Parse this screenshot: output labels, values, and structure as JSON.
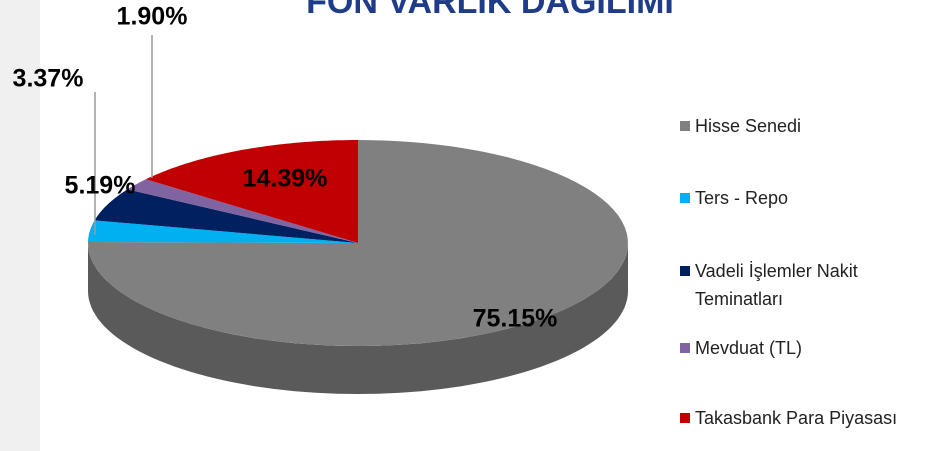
{
  "chart_data": {
    "type": "pie",
    "title": "FON VARLIK DAĞILIMI",
    "categories": [
      "Hisse Senedi",
      "Ters - Repo",
      "Vadeli İşlemler Nakit Teminatları",
      "Mevduat (TL)",
      "Takasbank Para Piyasası"
    ],
    "values": [
      75.15,
      3.37,
      5.19,
      1.9,
      14.39
    ],
    "value_labels": [
      "75.15%",
      "3.37%",
      "5.19%",
      "1.90%",
      "14.39%"
    ],
    "colors": [
      "#808080",
      "#00b0f0",
      "#002060",
      "#8064a2",
      "#c00000"
    ],
    "legend": "right"
  }
}
